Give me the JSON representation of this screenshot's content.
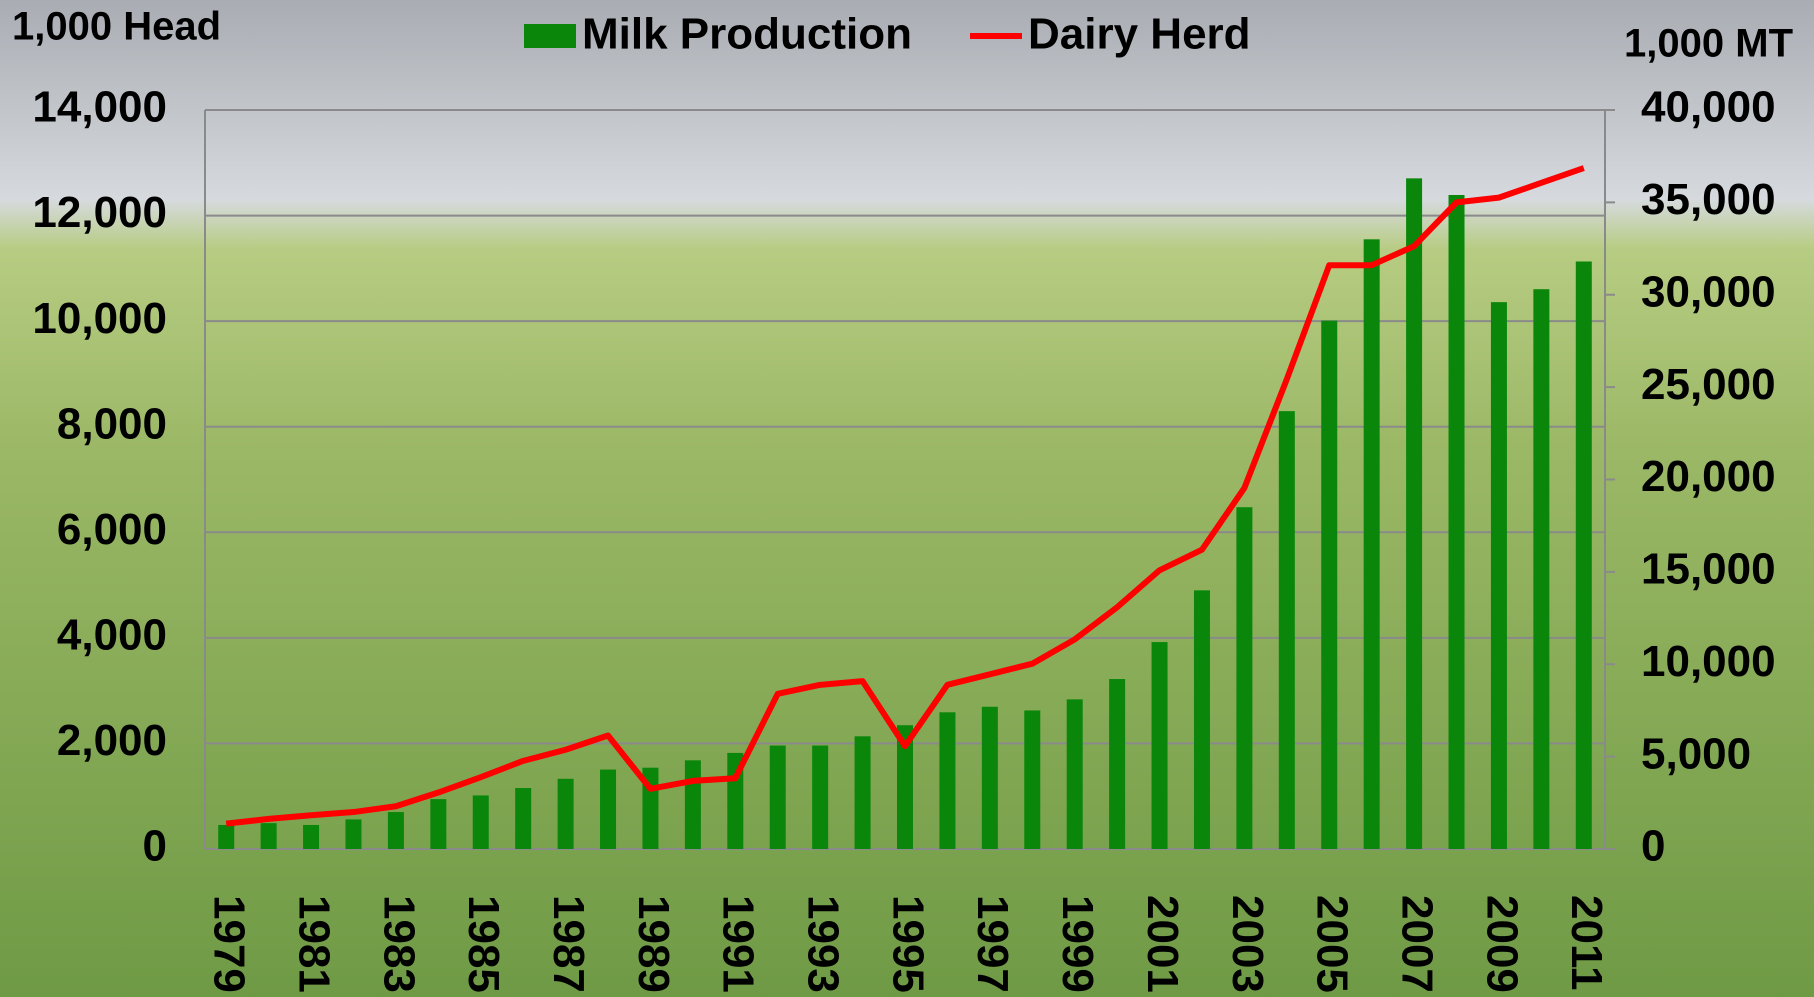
{
  "chart_data": {
    "type": "bar",
    "y_label": "1,000 Head",
    "y2_label": "1,000 MT",
    "categories": [
      "1979",
      null,
      "1981",
      null,
      "1983",
      null,
      "1985",
      null,
      "1987",
      null,
      "1989",
      null,
      "1991",
      null,
      "1993",
      null,
      "1995",
      null,
      "1997",
      null,
      "1999",
      null,
      "2001",
      null,
      "2003",
      null,
      "2005",
      null,
      "2007",
      null,
      "2009",
      null,
      "2011"
    ],
    "series": [
      {
        "name": "Milk Production",
        "type": "bar",
        "axis": "y2",
        "color": "#0a870a",
        "values": [
          1300,
          1400,
          1300,
          1600,
          2000,
          2700,
          2900,
          3300,
          3800,
          4300,
          4400,
          4800,
          5200,
          5600,
          5600,
          6100,
          6700,
          7400,
          7700,
          7500,
          8100,
          9200,
          11200,
          14000,
          18500,
          23700,
          28600,
          33000,
          36300,
          35400,
          29600,
          30300,
          31800
        ]
      },
      {
        "name": "Dairy Herd",
        "type": "line",
        "axis": "y",
        "color": "#ff0000",
        "values": [
          480,
          570,
          640,
          700,
          810,
          1070,
          1360,
          1670,
          1880,
          2150,
          1140,
          1290,
          1340,
          2940,
          3110,
          3180,
          1950,
          3110,
          3310,
          3510,
          3970,
          4580,
          5280,
          5670,
          6840,
          8900,
          11060,
          11060,
          11420,
          12250,
          12340,
          12620,
          12900
        ]
      }
    ],
    "ylim": [
      0,
      14000
    ],
    "yticks": [
      0,
      {
        "value": 2000,
        "label": "2,000"
      },
      {
        "value": 4000,
        "label": "4,000"
      },
      {
        "value": 6000,
        "label": "6,000"
      },
      {
        "value": 8000,
        "label": "8,000"
      },
      {
        "value": 10000,
        "label": "10,000"
      },
      {
        "value": 12000,
        "label": "12,000"
      },
      {
        "value": 14000,
        "label": "14,000"
      }
    ],
    "y2lim": [
      0,
      40000
    ],
    "y2ticks": [
      0,
      {
        "value": 5000,
        "label": "5,000"
      },
      {
        "value": 10000,
        "label": "10,000"
      },
      {
        "value": 15000,
        "label": "15,000"
      },
      {
        "value": 20000,
        "label": "20,000"
      },
      {
        "value": 25000,
        "label": "25,000"
      },
      {
        "value": 30000,
        "label": "30,000"
      },
      {
        "value": 35000,
        "label": "35,000"
      },
      {
        "value": 40000,
        "label": "40,000"
      }
    ],
    "grid": true,
    "legend": "top"
  }
}
